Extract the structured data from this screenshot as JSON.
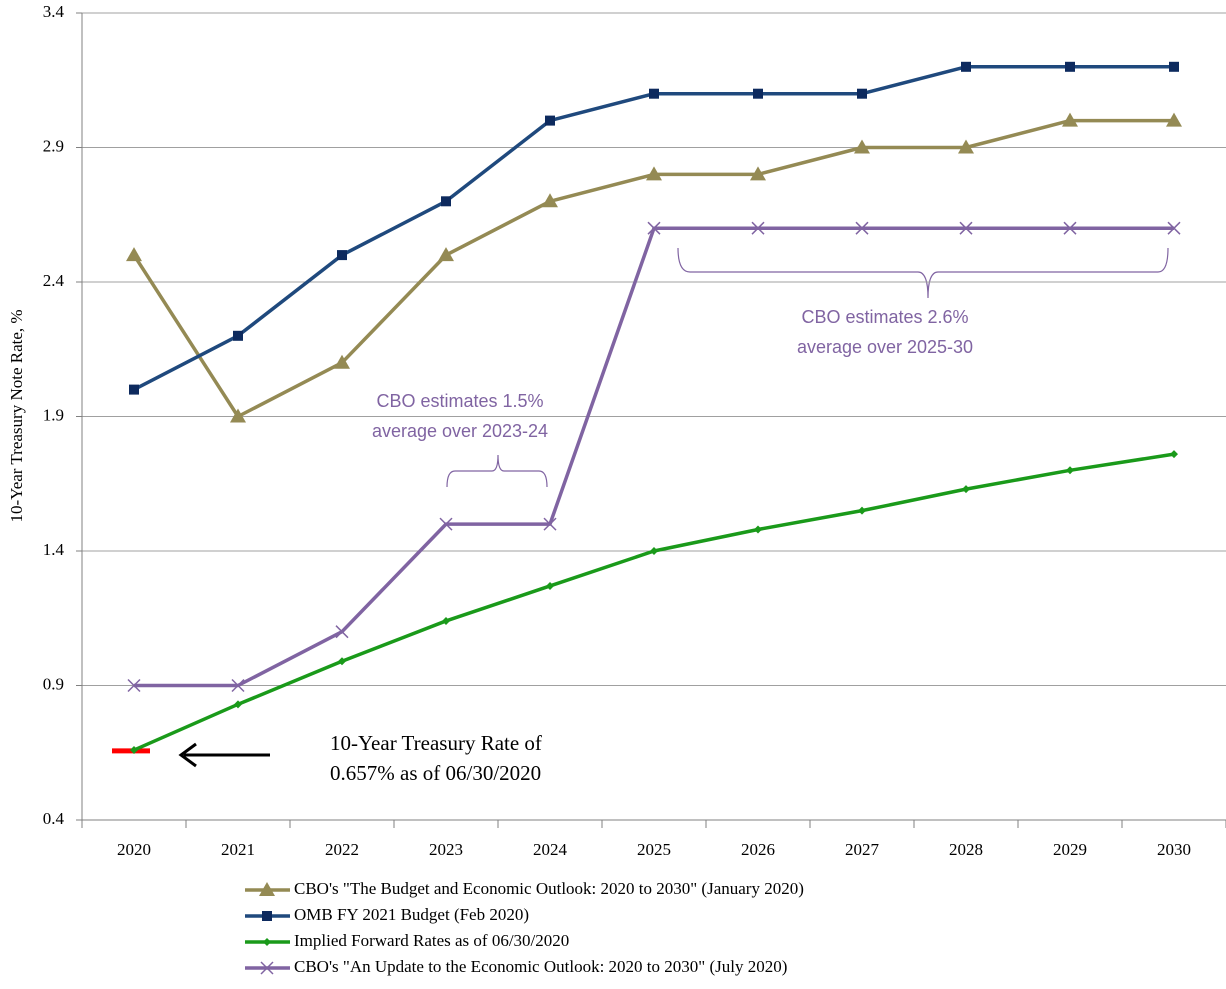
{
  "chart_data": {
    "type": "line",
    "y_label": "10-Year Treasury Note Rate, %",
    "categories": [
      "2020",
      "2021",
      "2022",
      "2023",
      "2024",
      "2025",
      "2026",
      "2027",
      "2028",
      "2029",
      "2030"
    ],
    "series": [
      {
        "name": "CBO's \"The Budget and Economic Outlook: 2020 to 2030\" (January 2020)",
        "color": "#948a54",
        "marker": "triangle",
        "values": [
          2.5,
          1.9,
          2.1,
          2.5,
          2.7,
          2.8,
          2.8,
          2.9,
          2.9,
          3.0,
          3.0
        ]
      },
      {
        "name": "OMB FY 2021 Budget (Feb 2020)",
        "color": "#1f497d",
        "marker": "square",
        "values": [
          2.0,
          2.2,
          2.5,
          2.7,
          3.0,
          3.1,
          3.1,
          3.1,
          3.2,
          3.2,
          3.2
        ]
      },
      {
        "name": "Implied Forward Rates as of 06/30/2020",
        "color": "#1a9a1a",
        "marker": "diamond",
        "values": [
          0.66,
          0.83,
          0.99,
          1.14,
          1.27,
          1.4,
          1.48,
          1.55,
          1.63,
          1.7,
          1.76
        ]
      },
      {
        "name": "CBO's \"An Update to the Economic Outlook: 2020 to 2030\" (July 2020)",
        "color": "#8064a2",
        "marker": "x",
        "values": [
          0.9,
          0.9,
          1.1,
          1.5,
          1.5,
          2.6,
          2.6,
          2.6,
          2.6,
          2.6,
          2.6
        ]
      }
    ],
    "reference_value": 0.657,
    "reference_color": "#ff0000",
    "annotations": [
      {
        "lines": [
          "CBO estimates 2.6%",
          "average over 2025-30"
        ]
      },
      {
        "lines": [
          "CBO estimates 1.5%",
          "average over 2023-24"
        ]
      },
      {
        "lines": [
          "10-Year Treasury Rate of",
          "0.657% as of  06/30/2020"
        ]
      }
    ],
    "ylim": [
      0.4,
      3.4
    ],
    "yticks": [
      0.4,
      0.9,
      1.4,
      1.9,
      2.4,
      2.9,
      3.4
    ],
    "grid": true
  }
}
